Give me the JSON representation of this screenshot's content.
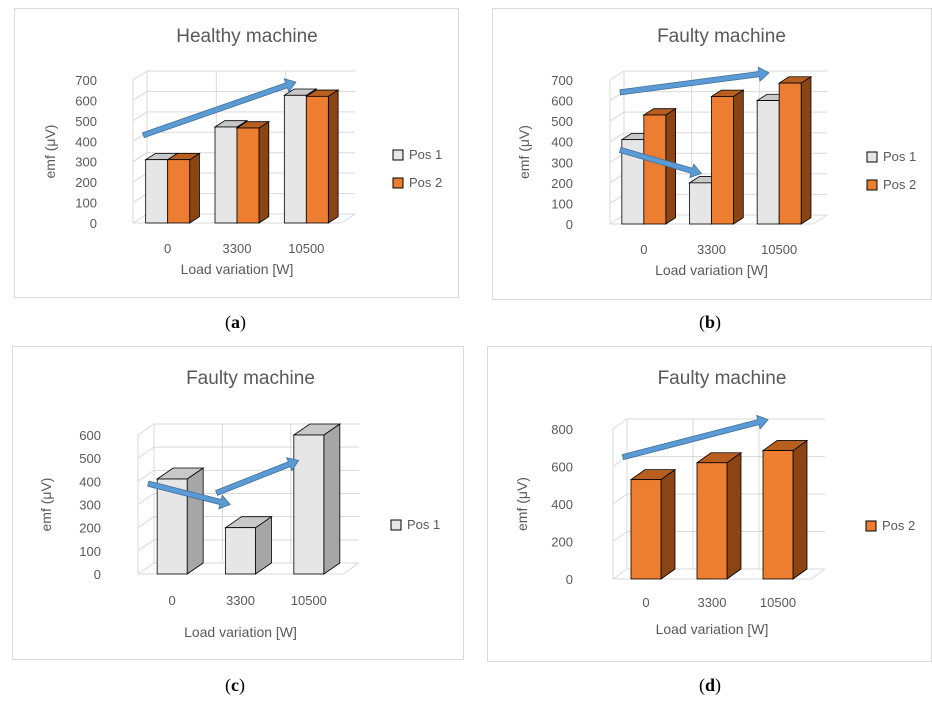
{
  "figure": {
    "captions": [
      "a",
      "b",
      "c",
      "d"
    ]
  },
  "colors": {
    "pos1_front": "#e6e6e6",
    "pos1_side": "#a6a6a6",
    "pos1_top": "#c8c8c8",
    "pos2_front": "#ed7d31",
    "pos2_side": "#8b4513",
    "pos2_top": "#b85f20",
    "arrow": "#5b9bd5",
    "grid": "#d9d9d9",
    "text": "#595959"
  },
  "chart_data": [
    {
      "type": "bar",
      "title": "Healthy machine",
      "xlabel": "Load variation  [W]",
      "ylabel": "emf (μV)",
      "categories": [
        "0",
        "3300",
        "10500"
      ],
      "ylim": [
        0,
        700
      ],
      "yticks": [
        0,
        100,
        200,
        300,
        400,
        500,
        600,
        700
      ],
      "series": [
        {
          "name": "Pos 1",
          "values": [
            310,
            470,
            625
          ],
          "color_key": "pos1"
        },
        {
          "name": "Pos 2",
          "values": [
            310,
            465,
            620
          ],
          "color_key": "pos2"
        }
      ],
      "legend": "right",
      "grid": true,
      "arrows": [
        {
          "from": [
            "0",
            430
          ],
          "to": [
            "10500",
            690
          ]
        }
      ]
    },
    {
      "type": "bar",
      "title": "Faulty machine",
      "xlabel": "Load variation  [W]",
      "ylabel": "emf (μV)",
      "categories": [
        "0",
        "3300",
        "10500"
      ],
      "ylim": [
        0,
        700
      ],
      "yticks": [
        0,
        100,
        200,
        300,
        400,
        500,
        600,
        700
      ],
      "series": [
        {
          "name": "Pos 1",
          "values": [
            410,
            200,
            600
          ],
          "color_key": "pos1"
        },
        {
          "name": "Pos 2",
          "values": [
            530,
            620,
            685
          ],
          "color_key": "pos2"
        }
      ],
      "legend": "right",
      "grid": true,
      "arrows": [
        {
          "from": [
            "0",
            640
          ],
          "to": [
            "10500",
            735
          ]
        },
        {
          "from": [
            "0",
            360
          ],
          "to": [
            "3300",
            245
          ]
        }
      ]
    },
    {
      "type": "bar",
      "title": "Faulty machine",
      "xlabel": "Load variation  [W]",
      "ylabel": "emf (μV)",
      "categories": [
        "0",
        "3300",
        "10500"
      ],
      "ylim": [
        0,
        600
      ],
      "yticks": [
        0,
        100,
        200,
        300,
        400,
        500,
        600
      ],
      "series": [
        {
          "name": "Pos 1",
          "values": [
            410,
            200,
            600
          ],
          "color_key": "pos1"
        }
      ],
      "legend": "right",
      "grid": true,
      "arrows": [
        {
          "from": [
            "0",
            390
          ],
          "to": [
            "3300",
            300
          ]
        },
        {
          "from": [
            "3300",
            350
          ],
          "to": [
            "10500",
            490
          ]
        }
      ]
    },
    {
      "type": "bar",
      "title": "Faulty machine",
      "xlabel": "Load variation  [W]",
      "ylabel": "emf (μV)",
      "categories": [
        "0",
        "3300",
        "10500"
      ],
      "ylim": [
        0,
        800
      ],
      "yticks": [
        0,
        200,
        400,
        600,
        800
      ],
      "series": [
        {
          "name": "Pos 2",
          "values": [
            530,
            620,
            685
          ],
          "color_key": "pos2"
        }
      ],
      "legend": "right",
      "grid": true,
      "arrows": [
        {
          "from": [
            "0",
            650
          ],
          "to": [
            "10500",
            850
          ]
        }
      ]
    }
  ]
}
